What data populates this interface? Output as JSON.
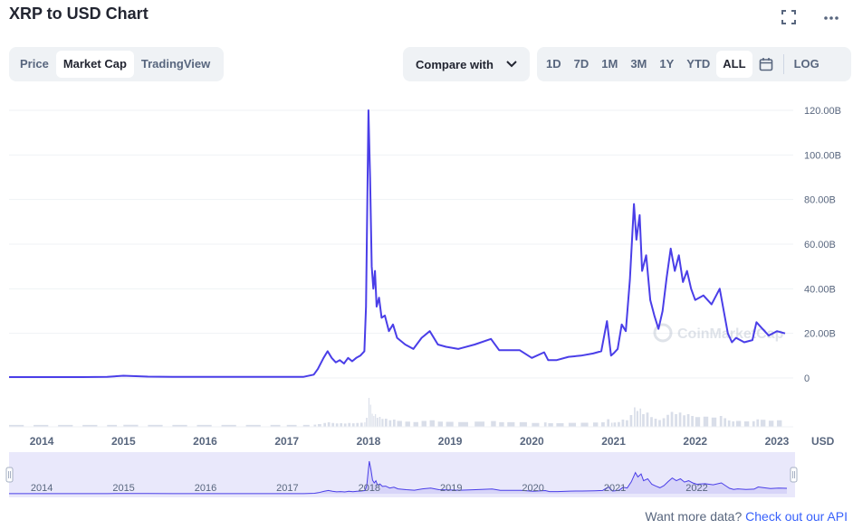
{
  "header": {
    "title": "XRP to USD Chart",
    "expand_icon": "expand-icon",
    "more_icon": "more-icon"
  },
  "view_tabs": [
    {
      "label": "Price",
      "active": false
    },
    {
      "label": "Market Cap",
      "active": true
    },
    {
      "label": "TradingView",
      "active": false
    }
  ],
  "compare": {
    "label": "Compare with",
    "icon": "chevron-down-icon"
  },
  "ranges": [
    {
      "label": "1D",
      "active": false
    },
    {
      "label": "7D",
      "active": false
    },
    {
      "label": "1M",
      "active": false
    },
    {
      "label": "3M",
      "active": false
    },
    {
      "label": "1Y",
      "active": false
    },
    {
      "label": "YTD",
      "active": false
    },
    {
      "label": "ALL",
      "active": true
    }
  ],
  "calendar_icon": "calendar-icon",
  "log_label": "LOG",
  "footer": {
    "text": "Want more data?",
    "link": "Check out our API"
  },
  "colors": {
    "line": "#4a3ee8",
    "grid": "#eff2f5",
    "axis_text": "#58667e",
    "volume": "#cfd6e4",
    "navigator_fill": "#e9e8fb"
  },
  "chart_data": {
    "type": "line",
    "title": "XRP to USD Chart",
    "series_label": "Market Cap",
    "ylabel": "USD",
    "y_ticks": [
      "0",
      "20.00B",
      "40.00B",
      "60.00B",
      "80.00B",
      "100.00B",
      "120.00B"
    ],
    "ylim": [
      0,
      120
    ],
    "xlim": [
      2013.6,
      2023.2
    ],
    "x_ticks": [
      "2014",
      "2015",
      "2016",
      "2017",
      "2018",
      "2019",
      "2020",
      "2021",
      "2022",
      "2023"
    ],
    "grid": true,
    "watermark": "CoinMarketCap",
    "x": [
      2013.6,
      2013.9,
      2014.2,
      2014.5,
      2014.8,
      2015.0,
      2015.3,
      2015.6,
      2015.9,
      2016.2,
      2016.5,
      2016.8,
      2017.0,
      2017.2,
      2017.33,
      2017.38,
      2017.45,
      2017.5,
      2017.55,
      2017.6,
      2017.65,
      2017.7,
      2017.75,
      2017.8,
      2017.85,
      2017.9,
      2017.95,
      2017.97,
      2018.0,
      2018.02,
      2018.04,
      2018.06,
      2018.08,
      2018.1,
      2018.13,
      2018.16,
      2018.2,
      2018.25,
      2018.3,
      2018.35,
      2018.45,
      2018.55,
      2018.65,
      2018.75,
      2018.85,
      2018.95,
      2019.1,
      2019.3,
      2019.5,
      2019.6,
      2019.7,
      2019.85,
      2020.0,
      2020.15,
      2020.2,
      2020.3,
      2020.45,
      2020.6,
      2020.75,
      2020.85,
      2020.92,
      2020.97,
      2021.0,
      2021.05,
      2021.1,
      2021.15,
      2021.2,
      2021.25,
      2021.28,
      2021.32,
      2021.35,
      2021.4,
      2021.45,
      2021.5,
      2021.55,
      2021.6,
      2021.65,
      2021.7,
      2021.75,
      2021.8,
      2021.85,
      2021.9,
      2021.95,
      2022.0,
      2022.1,
      2022.2,
      2022.3,
      2022.35,
      2022.4,
      2022.45,
      2022.5,
      2022.6,
      2022.7,
      2022.75,
      2022.8,
      2022.9,
      2023.0,
      2023.1
    ],
    "y": [
      0.4,
      0.4,
      0.4,
      0.4,
      0.5,
      1.0,
      0.6,
      0.5,
      0.5,
      0.5,
      0.5,
      0.5,
      0.5,
      0.5,
      1.5,
      4.0,
      9.0,
      12.0,
      9.0,
      7.0,
      8.0,
      6.5,
      9.0,
      7.5,
      9.0,
      10.0,
      12.0,
      32.0,
      120.0,
      90.0,
      50.0,
      40.0,
      48.0,
      32.0,
      36.0,
      27.0,
      28.0,
      21.0,
      24.0,
      18.0,
      15.0,
      13.0,
      18.0,
      21.0,
      15.0,
      14.0,
      13.0,
      15.0,
      17.5,
      12.5,
      12.5,
      12.5,
      9.0,
      11.5,
      8.0,
      8.0,
      9.5,
      10.0,
      11.0,
      12.0,
      25.5,
      10.0,
      11.0,
      13.0,
      24.0,
      21.0,
      44.0,
      78.0,
      62.0,
      73.0,
      48.0,
      55.0,
      35.0,
      28.0,
      22.0,
      30.0,
      45.0,
      58.0,
      48.0,
      55.0,
      43.0,
      48.0,
      40.0,
      35.0,
      37.0,
      33.0,
      40.0,
      30.0,
      20.0,
      16.0,
      18.0,
      16.0,
      17.0,
      25.0,
      23.0,
      19.0,
      21.0,
      20.0
    ]
  }
}
